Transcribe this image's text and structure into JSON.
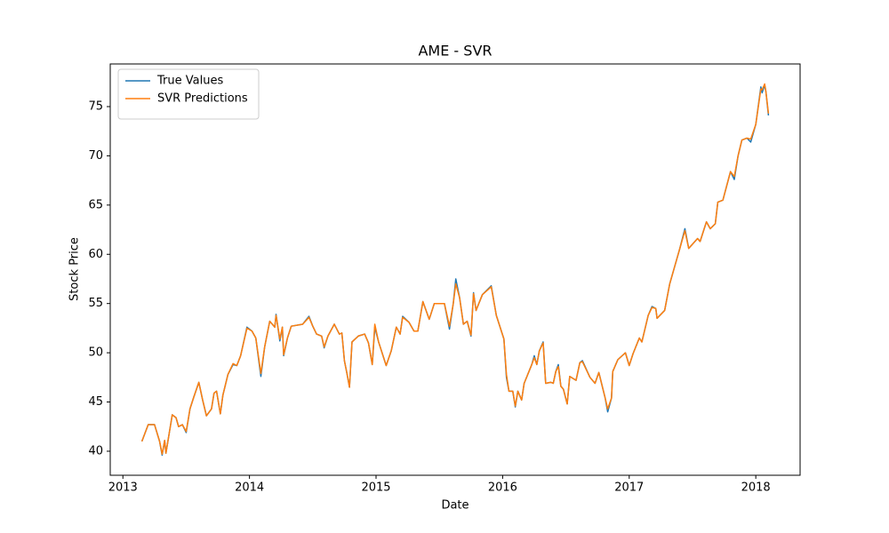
{
  "chart_data": {
    "type": "line",
    "title": "AME - SVR",
    "x_label": "Date",
    "y_label": "Stock Price",
    "x": [
      2013.15,
      2013.2,
      2013.25,
      2013.29,
      2013.31,
      2013.33,
      2013.34,
      2013.39,
      2013.42,
      2013.44,
      2013.47,
      2013.5,
      2013.53,
      2013.56,
      2013.6,
      2013.63,
      2013.66,
      2013.7,
      2013.72,
      2013.74,
      2013.77,
      2013.79,
      2013.83,
      2013.87,
      2013.9,
      2013.93,
      2013.98,
      2014.02,
      2014.05,
      2014.09,
      2014.12,
      2014.16,
      2014.2,
      2014.21,
      2014.24,
      2014.26,
      2014.27,
      2014.3,
      2014.33,
      2014.42,
      2014.47,
      2014.5,
      2014.53,
      2014.57,
      2014.59,
      2014.62,
      2014.67,
      2014.71,
      2014.73,
      2014.75,
      2014.77,
      2014.79,
      2014.81,
      2014.86,
      2014.91,
      2014.94,
      2014.97,
      2014.99,
      2015.02,
      2015.08,
      2015.12,
      2015.16,
      2015.19,
      2015.21,
      2015.26,
      2015.3,
      2015.33,
      2015.37,
      2015.42,
      2015.46,
      2015.54,
      2015.58,
      2015.61,
      2015.63,
      2015.66,
      2015.69,
      2015.72,
      2015.75,
      2015.77,
      2015.79,
      2015.84,
      2015.91,
      2015.95,
      2016.01,
      2016.03,
      2016.05,
      2016.08,
      2016.1,
      2016.12,
      2016.15,
      2016.17,
      2016.23,
      2016.25,
      2016.27,
      2016.29,
      2016.32,
      2016.34,
      2016.38,
      2016.4,
      2016.42,
      2016.44,
      2016.46,
      2016.48,
      2016.51,
      2016.53,
      2016.58,
      2016.61,
      2016.63,
      2016.69,
      2016.73,
      2016.76,
      2016.81,
      2016.83,
      2016.86,
      2016.87,
      2016.91,
      2016.97,
      2017.0,
      2017.03,
      2017.08,
      2017.1,
      2017.15,
      2017.18,
      2017.21,
      2017.22,
      2017.28,
      2017.32,
      2017.4,
      2017.44,
      2017.47,
      2017.54,
      2017.56,
      2017.61,
      2017.64,
      2017.68,
      2017.7,
      2017.74,
      2017.8,
      2017.83,
      2017.86,
      2017.89,
      2017.93,
      2017.96,
      2018.0,
      2018.04,
      2018.05,
      2018.07,
      2018.08,
      2018.1
    ],
    "series": [
      {
        "name": "True Values",
        "color": "#1f77b4",
        "values": [
          41.0,
          42.7,
          42.7,
          41.0,
          39.6,
          41.1,
          39.8,
          43.7,
          43.4,
          42.5,
          42.7,
          41.9,
          44.3,
          45.5,
          47.0,
          45.2,
          43.6,
          44.3,
          45.9,
          46.1,
          43.8,
          45.7,
          47.8,
          48.8,
          48.7,
          49.7,
          52.6,
          52.2,
          51.5,
          47.6,
          50.6,
          53.2,
          52.6,
          53.9,
          51.2,
          52.6,
          49.7,
          51.5,
          52.7,
          52.9,
          53.7,
          52.7,
          51.9,
          51.7,
          50.5,
          51.7,
          52.9,
          51.9,
          52.0,
          49.2,
          47.9,
          46.5,
          51.1,
          51.7,
          51.9,
          51.0,
          48.8,
          52.6,
          51.1,
          48.7,
          50.2,
          52.6,
          51.9,
          53.7,
          53.1,
          52.2,
          52.2,
          55.2,
          53.4,
          55.0,
          55.0,
          52.4,
          55.0,
          57.5,
          55.6,
          52.9,
          53.2,
          51.7,
          56.1,
          54.3,
          55.9,
          56.8,
          53.8,
          51.4,
          47.5,
          46.1,
          46.1,
          44.5,
          46.1,
          45.2,
          46.9,
          48.8,
          49.7,
          48.8,
          50.2,
          51.1,
          46.9,
          47.0,
          46.9,
          48.1,
          48.8,
          46.6,
          46.3,
          44.8,
          47.6,
          47.2,
          49.0,
          49.2,
          47.5,
          46.9,
          48.0,
          45.4,
          44.0,
          45.4,
          48.1,
          49.3,
          50.0,
          48.7,
          49.9,
          51.5,
          51.1,
          53.8,
          54.7,
          54.5,
          53.5,
          54.3,
          57.0,
          60.6,
          62.6,
          60.6,
          61.6,
          61.3,
          63.3,
          62.6,
          63.1,
          65.3,
          65.5,
          68.4,
          67.6,
          70.0,
          71.6,
          71.8,
          71.4,
          73.2,
          77.0,
          76.4,
          77.2,
          76.5,
          74.1
        ]
      },
      {
        "name": "SVR Predictions",
        "color": "#ff7f0e",
        "values": [
          41.0,
          42.7,
          42.7,
          41.0,
          39.7,
          41.1,
          39.8,
          43.7,
          43.4,
          42.5,
          42.7,
          42.0,
          44.3,
          45.5,
          47.0,
          45.2,
          43.6,
          44.3,
          45.9,
          46.1,
          43.8,
          45.7,
          47.8,
          48.9,
          48.7,
          49.7,
          52.5,
          52.2,
          51.5,
          47.9,
          50.6,
          53.2,
          52.6,
          53.8,
          51.4,
          52.6,
          49.8,
          51.5,
          52.7,
          52.9,
          53.6,
          52.7,
          51.9,
          51.7,
          50.6,
          51.7,
          52.9,
          51.9,
          52.0,
          49.2,
          47.9,
          46.5,
          51.1,
          51.7,
          51.9,
          51.0,
          48.8,
          52.9,
          51.1,
          48.7,
          50.2,
          52.6,
          51.9,
          53.6,
          53.1,
          52.2,
          52.2,
          55.2,
          53.4,
          55.0,
          55.0,
          52.7,
          55.0,
          57.0,
          55.6,
          52.9,
          53.2,
          51.8,
          56.0,
          54.3,
          55.9,
          56.7,
          53.8,
          51.4,
          47.8,
          46.1,
          46.1,
          44.6,
          46.1,
          45.2,
          46.9,
          48.8,
          49.5,
          48.8,
          50.2,
          51.0,
          46.9,
          47.0,
          46.9,
          48.1,
          48.6,
          46.6,
          46.3,
          44.8,
          47.6,
          47.2,
          49.0,
          49.1,
          47.5,
          46.9,
          48.0,
          45.4,
          44.3,
          45.4,
          48.1,
          49.3,
          50.0,
          48.7,
          49.9,
          51.5,
          51.1,
          53.8,
          54.6,
          54.5,
          53.5,
          54.3,
          57.0,
          60.6,
          62.4,
          60.6,
          61.6,
          61.3,
          63.3,
          62.6,
          63.1,
          65.3,
          65.5,
          68.4,
          67.9,
          70.0,
          71.6,
          71.8,
          71.7,
          73.2,
          76.8,
          76.7,
          77.3,
          76.5,
          74.3
        ]
      }
    ],
    "xlim": [
      2012.9,
      2018.35
    ],
    "xticks": [
      2013,
      2014,
      2015,
      2016,
      2017,
      2018
    ],
    "ylim": [
      37.56,
      79.33
    ],
    "yticks": [
      40,
      45,
      50,
      55,
      60,
      65,
      70,
      75
    ],
    "legend": "upper left"
  }
}
